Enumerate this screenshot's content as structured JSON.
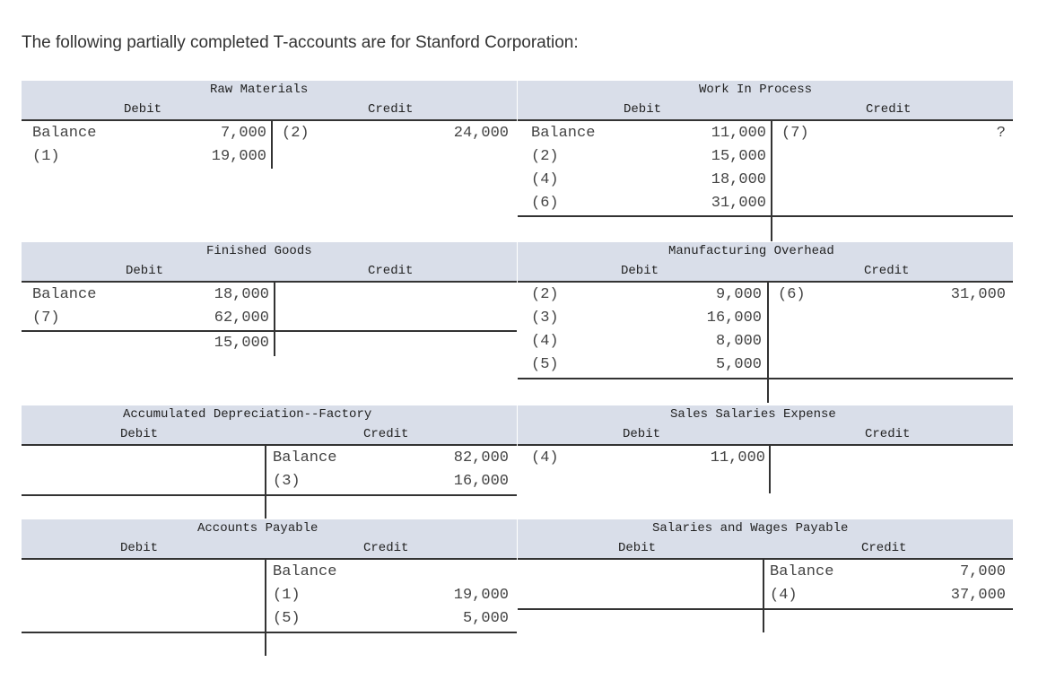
{
  "intro": "The following partially completed T-accounts are for Stanford Corporation:",
  "accounts": {
    "raw_materials": {
      "title": "Raw Materials",
      "debit": "Debit",
      "credit": "Credit",
      "d": [
        [
          "Balance",
          "7,000"
        ],
        [
          "(1)",
          "19,000"
        ]
      ],
      "c": [
        [
          "(2)",
          "24,000"
        ]
      ]
    },
    "wip": {
      "title": "Work In Process",
      "debit": "Debit",
      "credit": "Credit",
      "d": [
        [
          "Balance",
          "11,000"
        ],
        [
          "(2)",
          "15,000"
        ],
        [
          "(4)",
          "18,000"
        ],
        [
          "(6)",
          "31,000"
        ]
      ],
      "c": [
        [
          "(7)",
          "?"
        ]
      ]
    },
    "finished_goods": {
      "title": "Finished Goods",
      "debit": "Debit",
      "credit": "Credit",
      "d": [
        [
          "Balance",
          "18,000"
        ],
        [
          "(7)",
          "62,000"
        ]
      ],
      "d_total": "15,000"
    },
    "mfg_overhead": {
      "title": "Manufacturing Overhead",
      "debit": "Debit",
      "credit": "Credit",
      "d": [
        [
          "(2)",
          "9,000"
        ],
        [
          "(3)",
          "16,000"
        ],
        [
          "(4)",
          "8,000"
        ],
        [
          "(5)",
          "5,000"
        ]
      ],
      "c": [
        [
          "(6)",
          "31,000"
        ]
      ]
    },
    "accum_dep": {
      "title": "Accumulated Depreciation--Factory",
      "debit": "Debit",
      "credit": "Credit",
      "c": [
        [
          "Balance",
          "82,000"
        ],
        [
          "(3)",
          "16,000"
        ]
      ]
    },
    "sales_salaries": {
      "title": "Sales Salaries Expense",
      "debit": "Debit",
      "credit": "Credit",
      "d": [
        [
          "(4)",
          "11,000"
        ]
      ]
    },
    "accounts_payable": {
      "title": "Accounts Payable",
      "debit": "Debit",
      "credit": "Credit",
      "c": [
        [
          "Balance",
          ""
        ],
        [
          "(1)",
          "19,000"
        ],
        [
          "(5)",
          "5,000"
        ]
      ]
    },
    "salaries_payable": {
      "title": "Salaries and Wages Payable",
      "debit": "Debit",
      "credit": "Credit",
      "c": [
        [
          "Balance",
          "7,000"
        ],
        [
          "(4)",
          "37,000"
        ]
      ]
    }
  }
}
